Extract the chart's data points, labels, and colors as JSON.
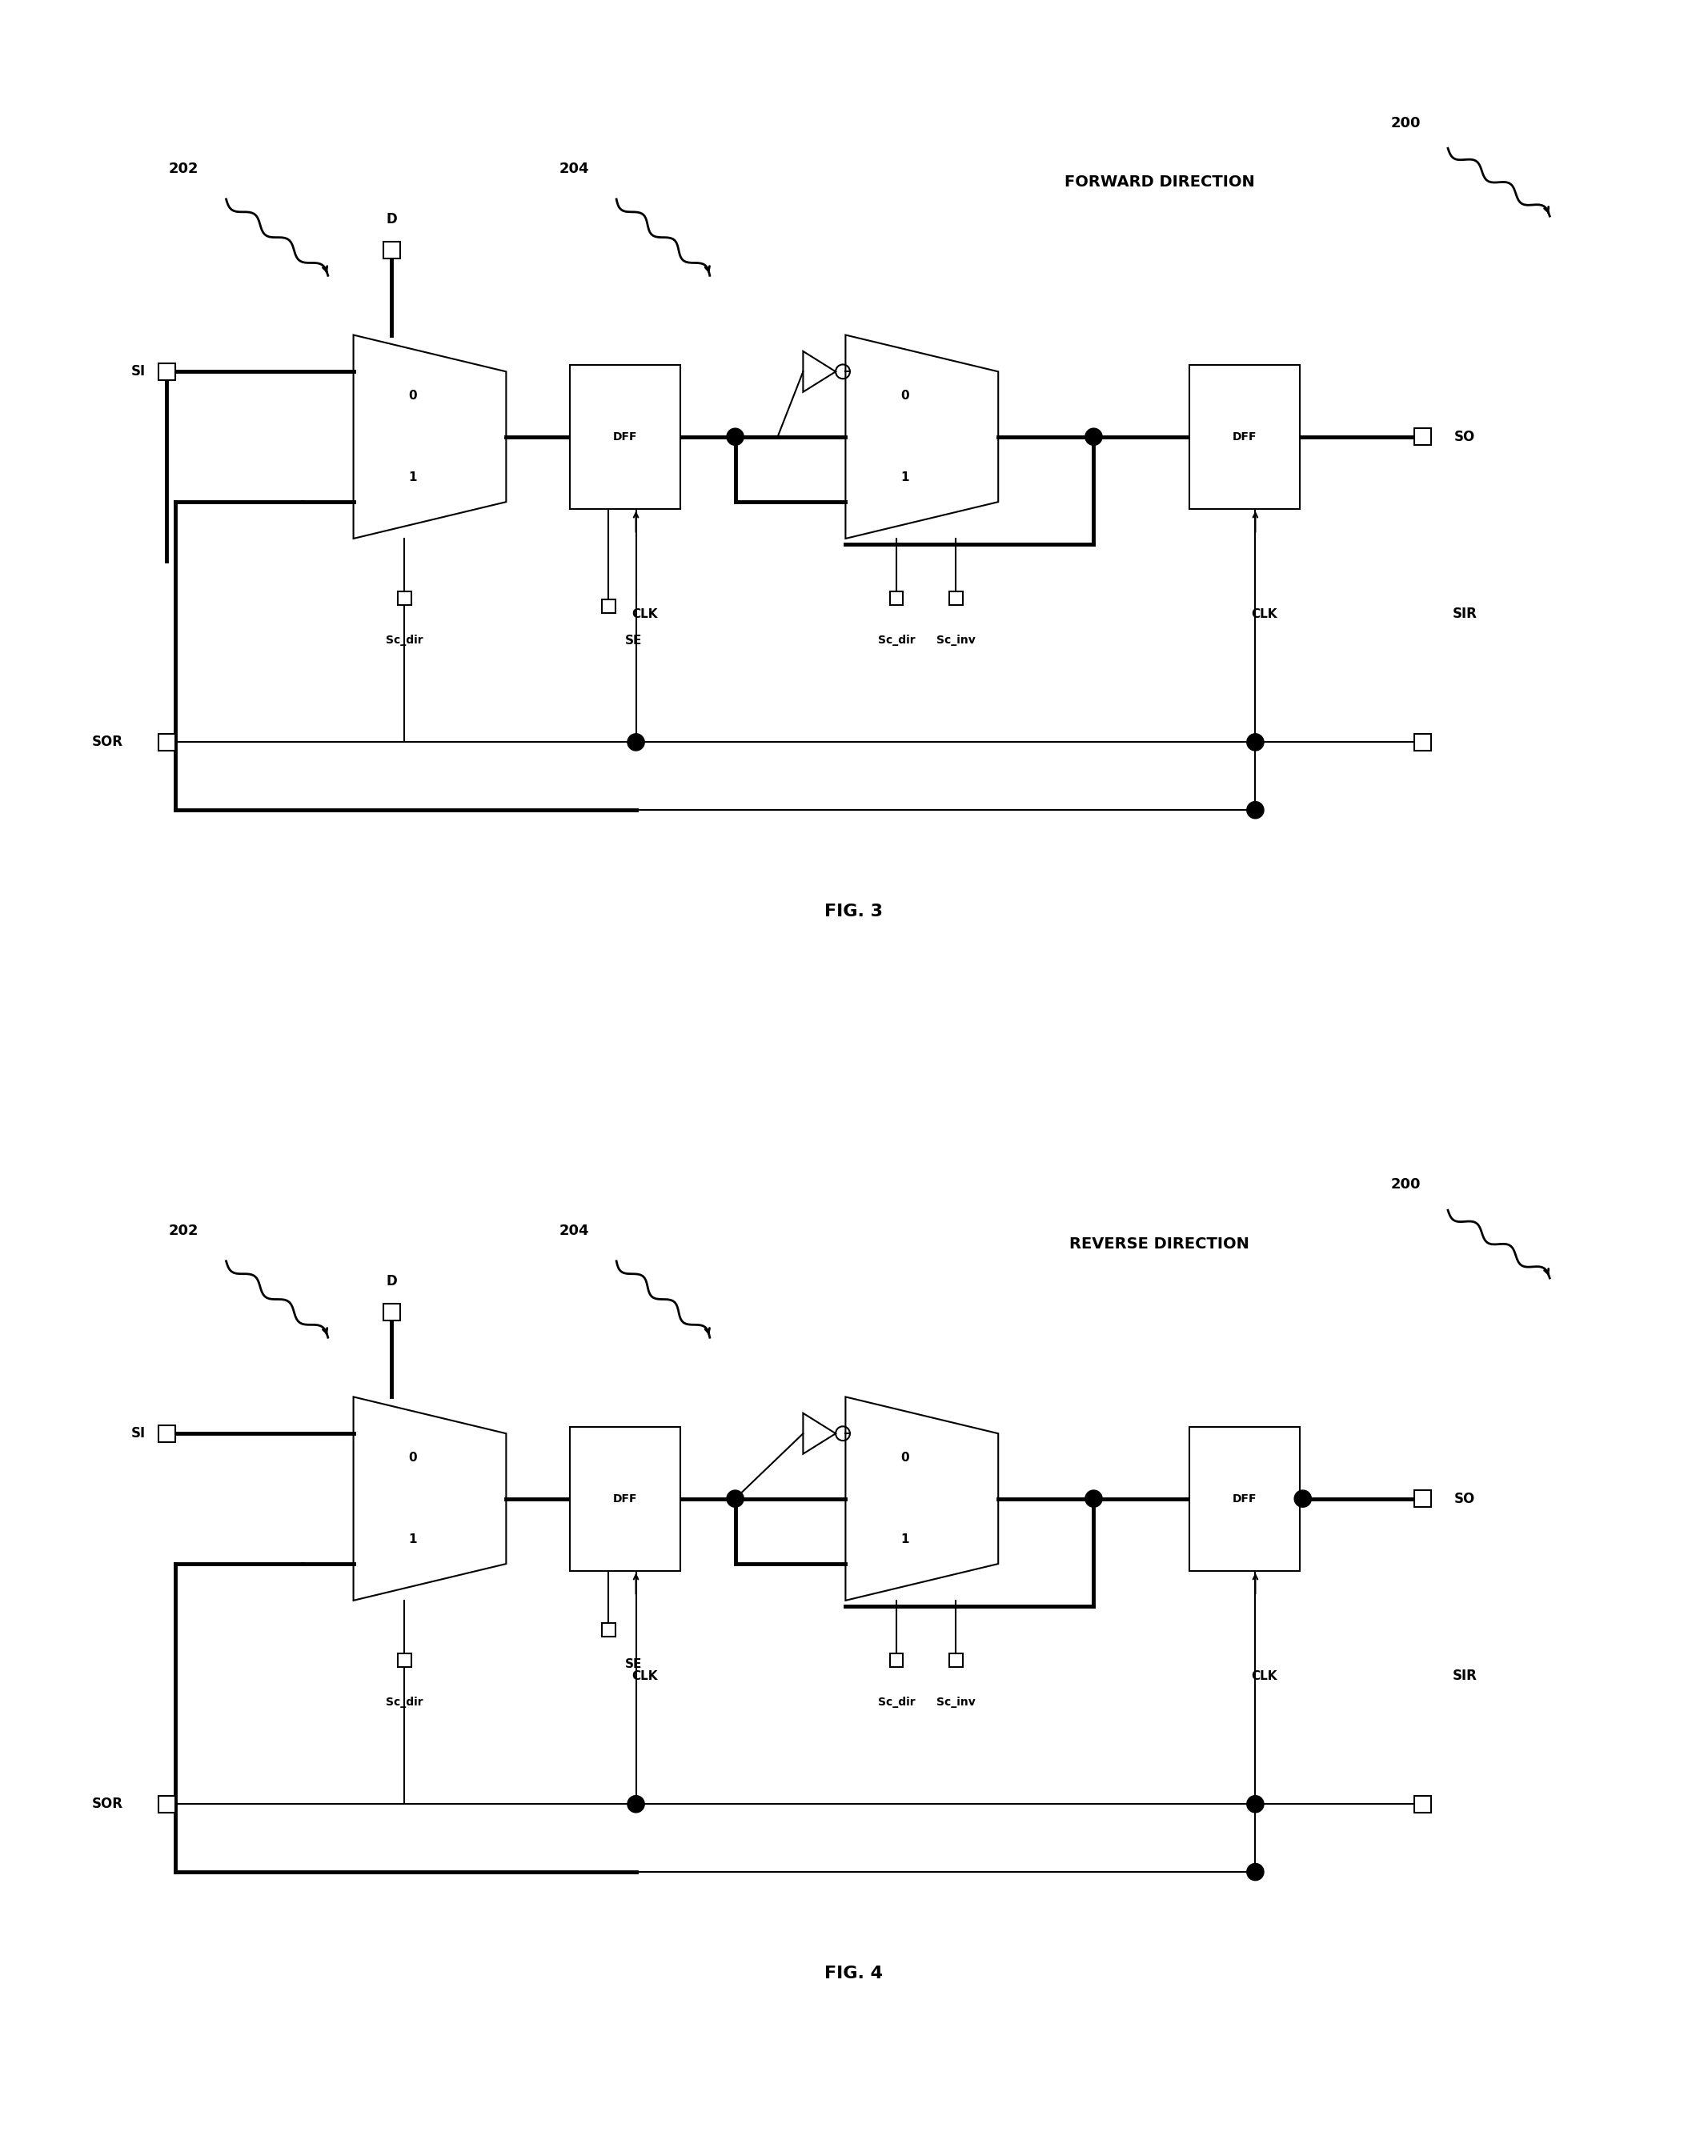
{
  "fig_width": 21.34,
  "fig_height": 26.94,
  "bg_color": "#ffffff",
  "line_color": "#000000",
  "thick_lw": 3.5,
  "thin_lw": 1.5,
  "fig3_title": "FORWARD DIRECTION",
  "fig4_title": "REVERSE DIRECTION",
  "fig3_label": "FIG. 3",
  "fig4_label": "FIG. 4",
  "label_200": "200",
  "label_202": "202",
  "label_204": "204"
}
